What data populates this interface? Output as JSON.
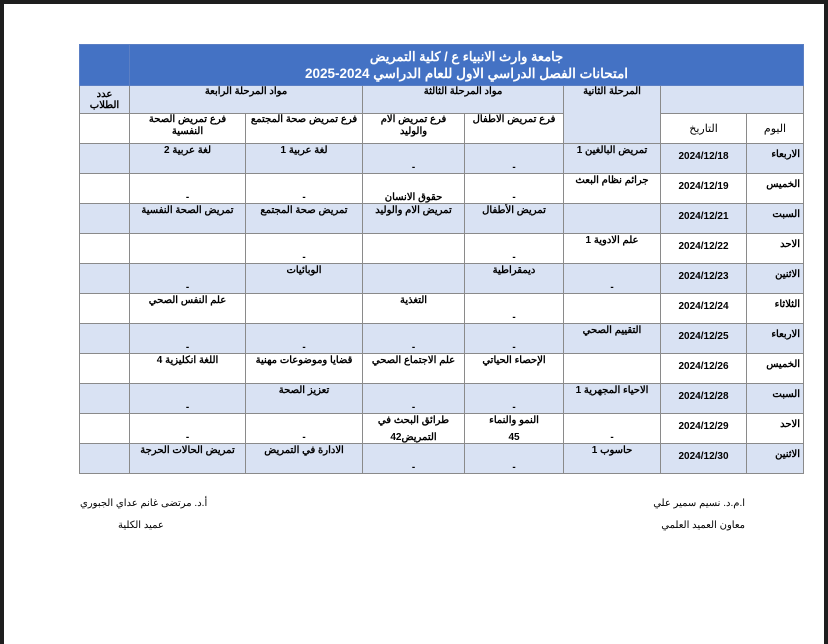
{
  "title": {
    "line1": "جامعة وارث الانبياء ع / كلية التمريض",
    "line2": "امتحانات الفصل الدراسي الاول للعام الدراسي 2024-2025"
  },
  "headers": {
    "student_count": "عدد الطلاب",
    "stage4": "مواد المرحلة الرابعة",
    "stage3": "مواد المرحلة الثالثة",
    "stage2": "المرحلة الثانية",
    "stage4_branch_psych": "فرع تمريض الصحة النفسية",
    "stage4_branch_community": "فرع تمريض صحة المجتمع",
    "stage3_branch_maternal": "فرع تمريض الام والوليد",
    "stage3_branch_pediatric": "فرع تمريض الاطفال",
    "date": "التاريخ",
    "day": "اليوم"
  },
  "colors": {
    "title_bg": "#4472c4",
    "row_shade": "#d9e2f3",
    "stage_header": "#e8262b",
    "branch_header": "#17a34a"
  },
  "rows": [
    {
      "day": "الاربعاء",
      "date": "2024/12/18",
      "s2": {
        "top": "تمريض البالغين 1",
        "bot": ""
      },
      "c3a": {
        "top": "",
        "bot": "-"
      },
      "c3b": {
        "top": "",
        "bot": "-"
      },
      "c4a": {
        "top": "لغة عربية 1",
        "bot": ""
      },
      "c4b": {
        "top": "لغة عربية 2",
        "bot": ""
      }
    },
    {
      "day": "الخميس",
      "date": "2024/12/19",
      "s2": {
        "top": "جرائم نظام البعث",
        "bot": ""
      },
      "c3a": {
        "top": "",
        "bot": "-"
      },
      "c3b": {
        "top": "",
        "bot": "حقوق الانسان"
      },
      "c4a": {
        "top": "",
        "bot": "-"
      },
      "c4b": {
        "top": "",
        "bot": "-"
      }
    },
    {
      "day": "السبت",
      "date": "2024/12/21",
      "s2": {
        "top": "",
        "bot": ""
      },
      "c3a": {
        "top": "تمريض الأطفال",
        "bot": ""
      },
      "c3b": {
        "top": "تمريض الام والوليد",
        "bot": ""
      },
      "c4a": {
        "top": "تمريض صحة المجتمع",
        "bot": ""
      },
      "c4b": {
        "top": "تمريض الصحة النفسية",
        "bot": ""
      }
    },
    {
      "day": "الاحد",
      "date": "2024/12/22",
      "s2": {
        "top": "علم الادوية 1",
        "bot": ""
      },
      "c3a": {
        "top": "",
        "bot": "-"
      },
      "c3b": {
        "top": "",
        "bot": ""
      },
      "c4a": {
        "top": "",
        "bot": "-"
      },
      "c4b": {
        "top": "",
        "bot": ""
      }
    },
    {
      "day": "الاثنين",
      "date": "2024/12/23",
      "s2": {
        "top": "",
        "bot": "-"
      },
      "c3a": {
        "top": "ديمقراطية",
        "bot": ""
      },
      "c3b": {
        "top": "",
        "bot": ""
      },
      "c4a": {
        "top": "الوبائيات",
        "bot": ""
      },
      "c4b": {
        "top": "",
        "bot": "-"
      }
    },
    {
      "day": "الثلاثاء",
      "date": "2024/12/24",
      "s2": {
        "top": "",
        "bot": ""
      },
      "c3a": {
        "top": "",
        "bot": "-"
      },
      "c3b": {
        "top": "التغذية",
        "bot": ""
      },
      "c4a": {
        "top": "",
        "bot": ""
      },
      "c4b": {
        "top": "علم النفس الصحي",
        "bot": ""
      }
    },
    {
      "day": "الاربعاء",
      "date": "2024/12/25",
      "s2": {
        "top": "التقييم الصحي",
        "bot": ""
      },
      "c3a": {
        "top": "",
        "bot": "-"
      },
      "c3b": {
        "top": "",
        "bot": "-"
      },
      "c4a": {
        "top": "",
        "bot": "-"
      },
      "c4b": {
        "top": "",
        "bot": "-"
      }
    },
    {
      "day": "الخميس",
      "date": "2024/12/26",
      "s2": {
        "top": "",
        "bot": ""
      },
      "c3a": {
        "top": "الإحصاء الحياتي",
        "bot": ""
      },
      "c3b": {
        "top": "علم الاجتماع الصحي",
        "bot": ""
      },
      "c4a": {
        "top": "قضايا وموضوعات مهنية",
        "bot": ""
      },
      "c4b": {
        "top": "اللغة انكليزية 4",
        "bot": ""
      }
    },
    {
      "day": "السبت",
      "date": "2024/12/28",
      "s2": {
        "top": "الاحياء المجهرية 1",
        "bot": ""
      },
      "c3a": {
        "top": "",
        "bot": "-"
      },
      "c3b": {
        "top": "",
        "bot": "-"
      },
      "c4a": {
        "top": "تعزيز الصحة",
        "bot": ""
      },
      "c4b": {
        "top": "",
        "bot": "-"
      }
    },
    {
      "day": "الاحد",
      "date": "2024/12/29",
      "s2": {
        "top": "",
        "bot": "-"
      },
      "c3a": {
        "top": "النمو والنماء",
        "bot": "45"
      },
      "c3b": {
        "top": "طرائق البحث في",
        "bot": "التمريض42"
      },
      "c4a": {
        "top": "",
        "bot": "-"
      },
      "c4b": {
        "top": "",
        "bot": "-"
      }
    },
    {
      "day": "الاثنين",
      "date": "2024/12/30",
      "s2": {
        "top": "حاسوب 1",
        "bot": ""
      },
      "c3a": {
        "top": "",
        "bot": "-"
      },
      "c3b": {
        "top": "",
        "bot": "-"
      },
      "c4a": {
        "top": "الادارة في التمريض",
        "bot": ""
      },
      "c4b": {
        "top": "تمريض الحالات الحرجة",
        "bot": ""
      }
    }
  ],
  "signatures": {
    "right_name": "ا.م.د. نسيم سمير علي",
    "right_title": "معاون العميد العلمي",
    "left_name": "أ.د. مرتضى غانم عداي الجبوري",
    "left_title": "عميد الكلية"
  }
}
